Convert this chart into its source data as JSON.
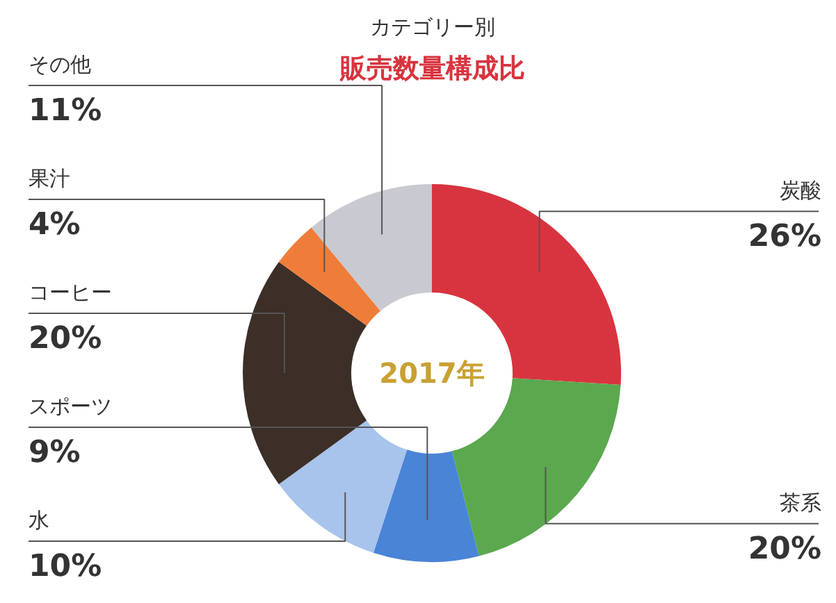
{
  "chart_data": {
    "type": "donut",
    "title": "カテゴリー別",
    "subtitle": "販売数量構成比",
    "categories": [
      "炭酸",
      "茶系",
      "スポーツ",
      "水",
      "コーヒー",
      "果汁",
      "その他"
    ],
    "values": [
      26,
      20,
      9,
      10,
      20,
      4,
      11
    ],
    "colors": [
      "#d8343f",
      "#5ba84f",
      "#4a84d6",
      "#a8c3ec",
      "#3b2f27",
      "#ef7d3a",
      "#c9c9d1"
    ],
    "value_labels": [
      "26%",
      "20%",
      "9%",
      "10%",
      "20%",
      "4%",
      "11%"
    ],
    "annotations": [
      "2017年"
    ]
  }
}
